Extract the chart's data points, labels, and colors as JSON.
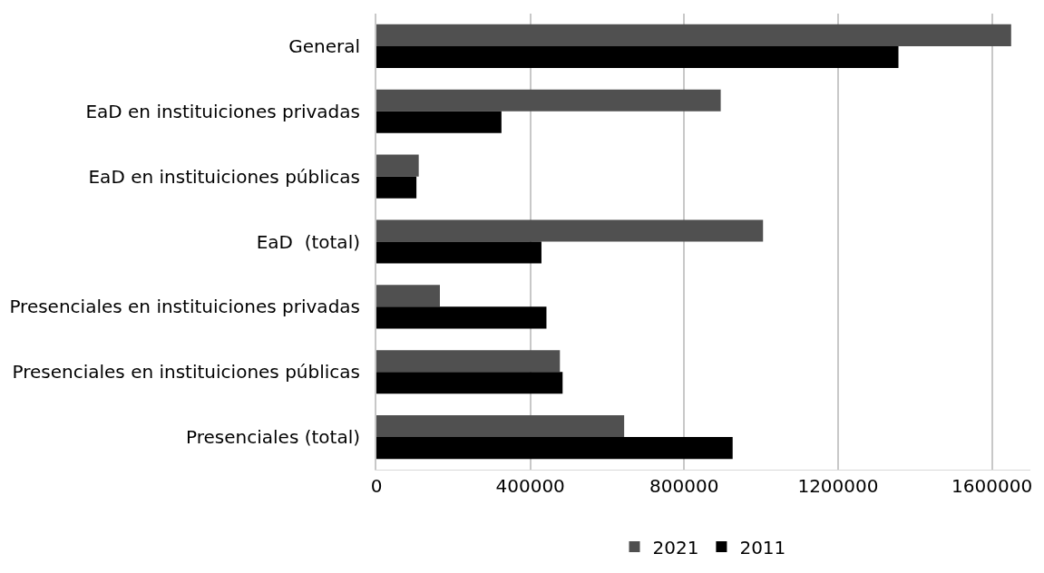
{
  "chart_data": {
    "type": "bar",
    "orientation": "horizontal",
    "categories": [
      "General",
      "EaD en instituiciones privadas",
      "EaD en instituiciones públicas",
      "EaD  (total)",
      "Presenciales en instituiciones privadas",
      "Presenciales en instituiciones públicas",
      "Presenciales (total)"
    ],
    "series": [
      {
        "name": "2021",
        "color": "#505050",
        "values": [
          1650000,
          895000,
          110000,
          1005000,
          165000,
          477000,
          644000
        ]
      },
      {
        "name": "2011",
        "color": "#000000",
        "values": [
          1357000,
          325000,
          104000,
          429000,
          442000,
          484000,
          926000
        ]
      }
    ],
    "xlim": [
      0,
      1700000
    ],
    "xticks": [
      0,
      400000,
      800000,
      1200000,
      1600000
    ],
    "grid": "x",
    "legend": "bottom"
  }
}
